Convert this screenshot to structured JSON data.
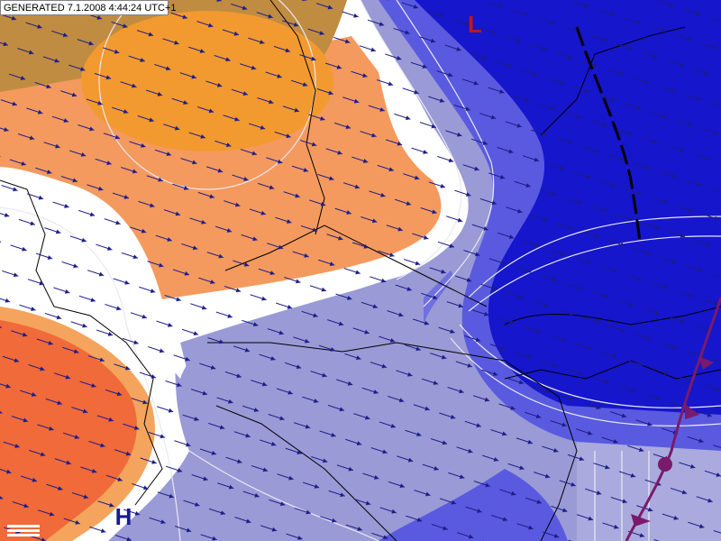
{
  "header": {
    "generated": "GENERATED 7.1.2008 4:44:24 UTC+1"
  },
  "labels": {
    "low": "L",
    "high": "H"
  }
}
